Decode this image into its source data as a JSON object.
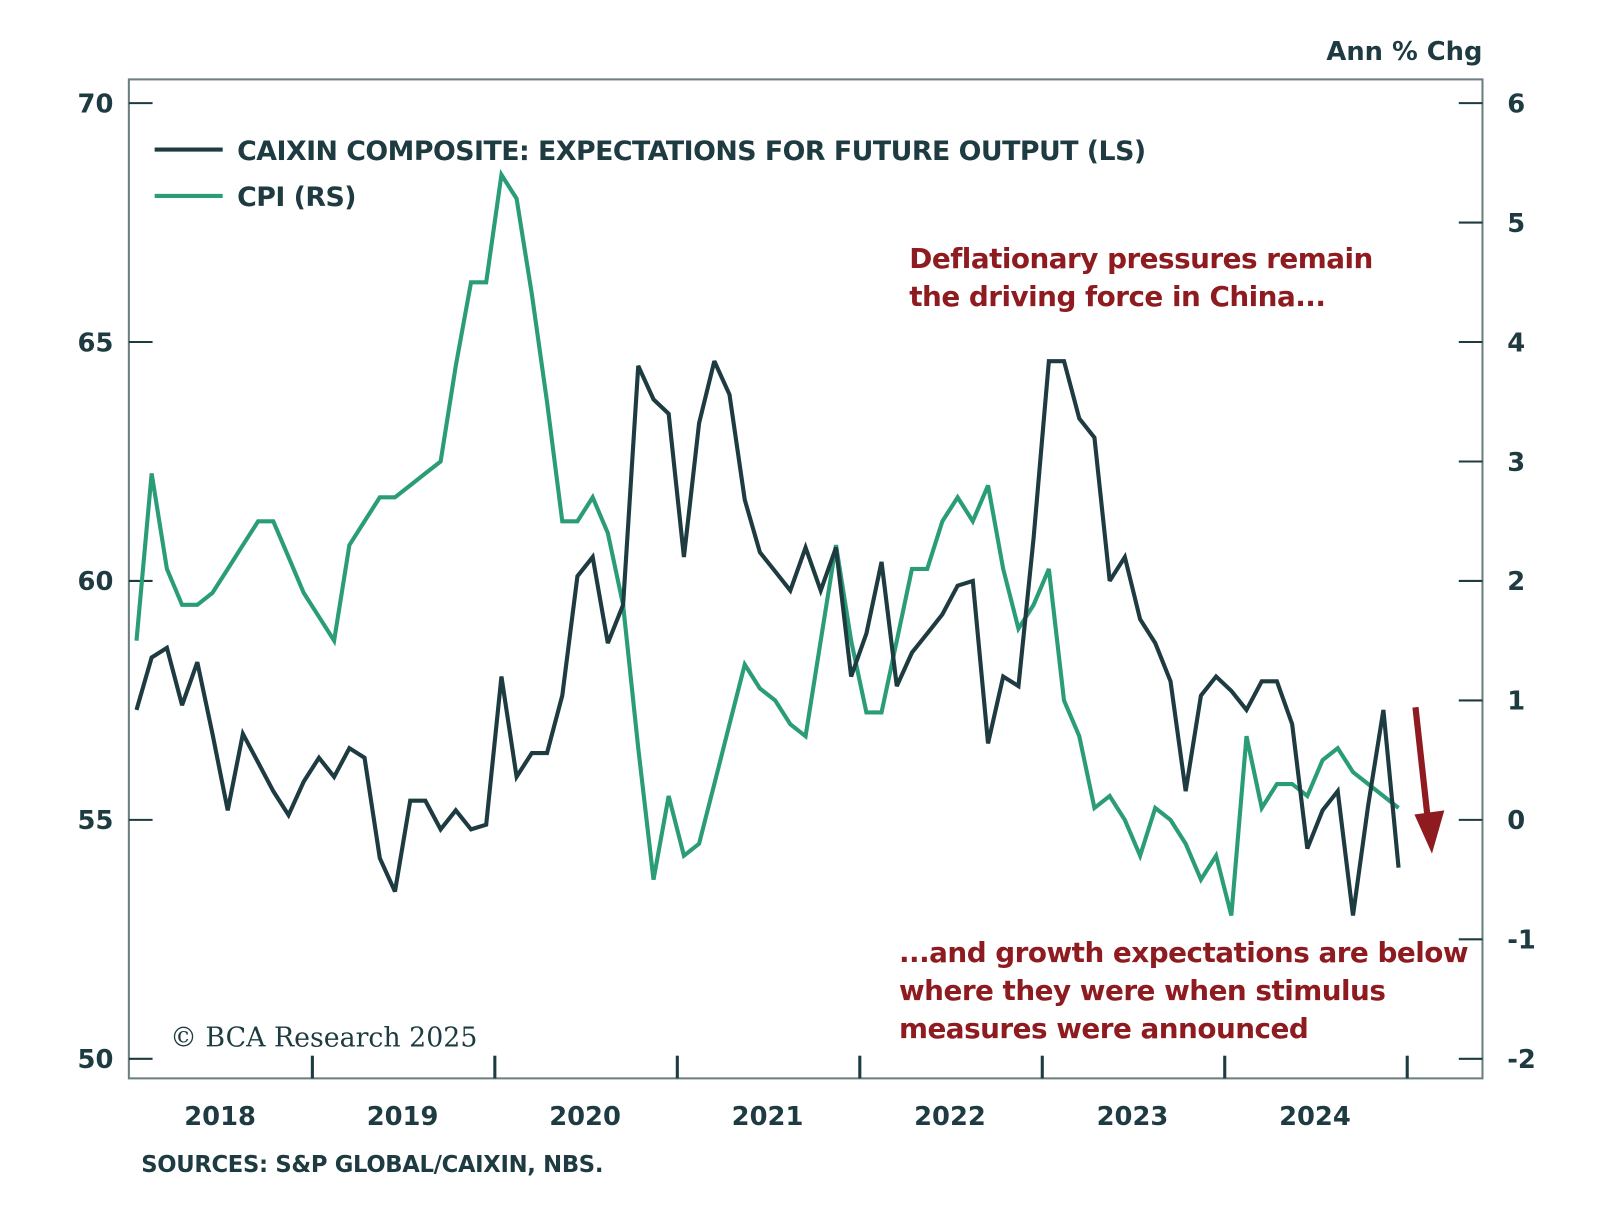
{
  "chart_data": {
    "type": "line",
    "left_axis": {
      "ticks": [
        "50",
        "55",
        "60",
        "65",
        "70"
      ],
      "range": [
        50,
        70
      ]
    },
    "right_axis": {
      "label": "Ann % Chg",
      "ticks": [
        "-2",
        "-1",
        "0",
        "1",
        "2",
        "3",
        "4",
        "5",
        "6"
      ],
      "range": [
        -2,
        6
      ]
    },
    "x_axis": {
      "ticks": [
        "2018",
        "2019",
        "2020",
        "2021",
        "2022",
        "2023",
        "2024"
      ],
      "start": "2018-01",
      "end": "2024-12",
      "frequency": "monthly"
    },
    "grid": false,
    "legend_placement": "top-left",
    "series": [
      {
        "name": "CAIXIN COMPOSITE: EXPECTATIONS FOR FUTURE OUTPUT (LS)",
        "axis": "left",
        "color": "#1d3b40",
        "values": [
          57.3,
          58.4,
          58.6,
          57.4,
          58.3,
          56.8,
          55.2,
          56.8,
          56.2,
          55.6,
          55.1,
          55.8,
          56.3,
          55.9,
          56.5,
          56.3,
          54.2,
          53.5,
          55.4,
          55.4,
          54.8,
          55.2,
          54.8,
          54.9,
          58.0,
          55.9,
          56.4,
          56.4,
          57.6,
          60.1,
          60.5,
          58.7,
          59.5,
          64.5,
          63.8,
          63.5,
          60.5,
          63.3,
          64.6,
          63.9,
          61.7,
          60.6,
          60.2,
          59.8,
          60.7,
          59.8,
          60.7,
          58.0,
          58.9,
          60.4,
          57.8,
          58.5,
          58.9,
          59.3,
          59.9,
          60.0,
          56.6,
          58.0,
          57.8,
          60.9,
          64.6,
          64.6,
          63.4,
          63.0,
          60.0,
          60.5,
          59.2,
          58.7,
          57.9,
          55.6,
          57.6,
          58.0,
          57.7,
          57.3,
          57.9,
          57.9,
          57.0,
          54.4,
          55.2,
          55.6,
          53.0,
          55.3,
          57.3,
          54.0
        ]
      },
      {
        "name": "CPI (RS)",
        "axis": "right",
        "color": "#2a9d78",
        "values": [
          1.5,
          2.9,
          2.1,
          1.8,
          1.8,
          1.9,
          2.1,
          2.3,
          2.5,
          2.5,
          2.2,
          1.9,
          1.7,
          1.5,
          2.3,
          2.5,
          2.7,
          2.7,
          2.8,
          2.9,
          3.0,
          3.8,
          4.5,
          4.5,
          5.4,
          5.2,
          4.4,
          3.5,
          2.5,
          2.5,
          2.7,
          2.4,
          1.8,
          0.6,
          -0.5,
          0.2,
          -0.3,
          -0.2,
          0.3,
          0.8,
          1.3,
          1.1,
          1.0,
          0.8,
          0.7,
          1.5,
          2.3,
          1.5,
          0.9,
          0.9,
          1.5,
          2.1,
          2.1,
          2.5,
          2.7,
          2.5,
          2.8,
          2.1,
          1.6,
          1.8,
          2.1,
          1.0,
          0.7,
          0.1,
          0.2,
          0.0,
          -0.3,
          0.1,
          0.0,
          -0.2,
          -0.5,
          -0.3,
          -0.8,
          0.7,
          0.1,
          0.3,
          0.3,
          0.2,
          0.5,
          0.6,
          0.4,
          0.3,
          0.2,
          0.1
        ]
      }
    ],
    "annotations": {
      "top": [
        "Deflationary pressures remain",
        "the driving force in China..."
      ],
      "bottom": [
        "...and growth expectations are below",
        "where they were when stimulus",
        "measures were announced"
      ],
      "arrow_color": "#8e1b1f"
    },
    "copyright": "© BCA Research 2025",
    "sources": "SOURCES: S&P GLOBAL/CAIXIN, NBS."
  }
}
